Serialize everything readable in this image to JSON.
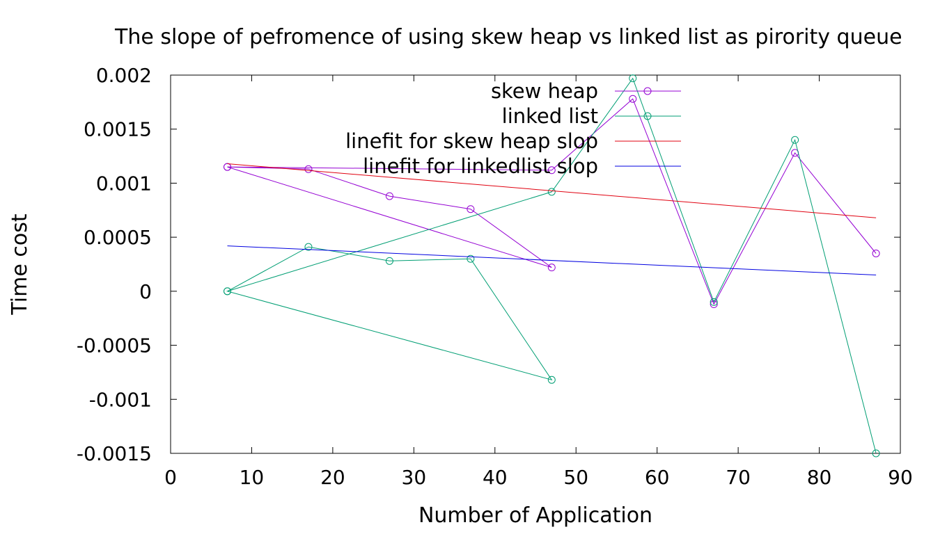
{
  "chart_data": {
    "type": "line",
    "title": "The slope of pefromence of using skew heap vs linked list as pirority queue",
    "xlabel": "Number of Application",
    "ylabel": "Time cost",
    "xlim": [
      0,
      90
    ],
    "ylim": [
      -0.0015,
      0.002
    ],
    "xticks": [
      0,
      10,
      20,
      30,
      40,
      50,
      60,
      70,
      80,
      90
    ],
    "xtick_labels": [
      "0",
      "10",
      "20",
      "30",
      "40",
      "50",
      "60",
      "70",
      "80",
      "90"
    ],
    "yticks": [
      -0.0015,
      -0.001,
      -0.0005,
      0,
      0.0005,
      0.001,
      0.0015,
      0.002
    ],
    "ytick_labels": [
      "-0.0015",
      "-0.001",
      "-0.0005",
      "0",
      "0.0005",
      "0.001",
      "0.0015",
      "0.002"
    ],
    "grid": false,
    "legend_position": "top-right (inside)",
    "series": [
      {
        "name": "skew heap",
        "color": "#9400d3",
        "markers": true,
        "x": [
          7,
          17,
          27,
          37,
          47,
          7,
          47,
          57,
          67,
          77,
          87
        ],
        "y": [
          0.00115,
          0.00113,
          0.00088,
          0.00076,
          0.00022,
          0.00115,
          0.00112,
          0.00178,
          -0.00012,
          0.00128,
          0.00035
        ]
      },
      {
        "name": "linked list",
        "color": "#009e73",
        "markers": true,
        "x": [
          7,
          17,
          27,
          37,
          47,
          7,
          47,
          57,
          67,
          77,
          87
        ],
        "y": [
          0.0,
          0.00041,
          0.00028,
          0.0003,
          -0.00082,
          0.0,
          0.00092,
          0.00197,
          -0.0001,
          0.0014,
          -0.0015
        ]
      },
      {
        "name": "linefit for skew heap slop",
        "color": "#e0000f",
        "markers": false,
        "x": [
          7,
          87
        ],
        "y": [
          0.00118,
          0.00068
        ]
      },
      {
        "name": "linefit for linkedlist slop",
        "color": "#0000e0",
        "markers": false,
        "x": [
          7,
          87
        ],
        "y": [
          0.00042,
          0.00015
        ]
      }
    ]
  }
}
